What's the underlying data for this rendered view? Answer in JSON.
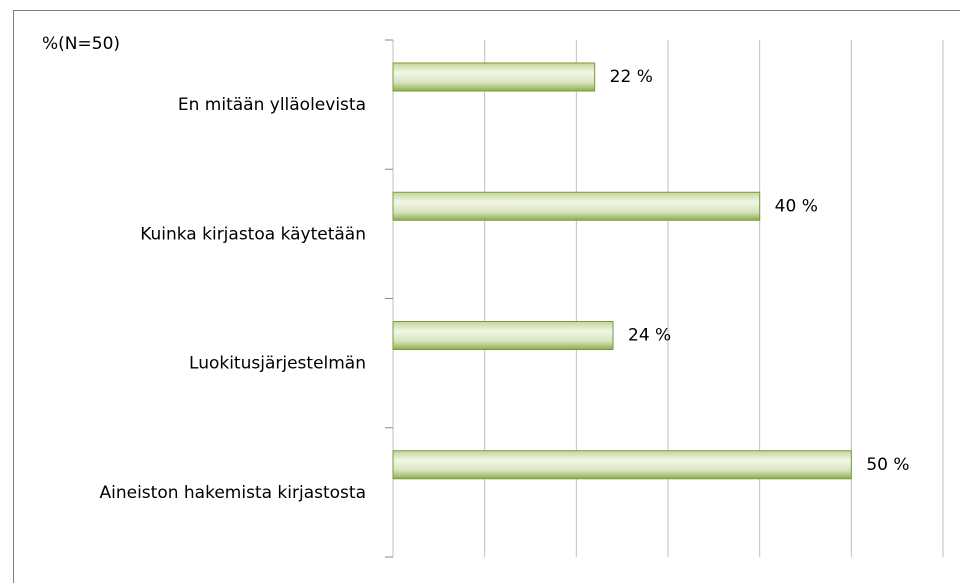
{
  "chart_data": {
    "type": "barh",
    "ylabel": "%(N=50)",
    "categories": [
      "En mitään ylläolevista",
      "Kuinka kirjastoa käytetään",
      "Luokitusjärjestelmän",
      "Aineiston hakemista kirjastosta"
    ],
    "values": [
      22,
      40,
      24,
      50
    ],
    "value_labels": [
      "22 %",
      "40 %",
      "24 %",
      "50 %"
    ],
    "color": "#9bbb59",
    "xlim": [
      0,
      60
    ],
    "xticks": [
      0,
      10,
      20,
      30,
      40,
      50,
      60
    ],
    "grid": true
  }
}
